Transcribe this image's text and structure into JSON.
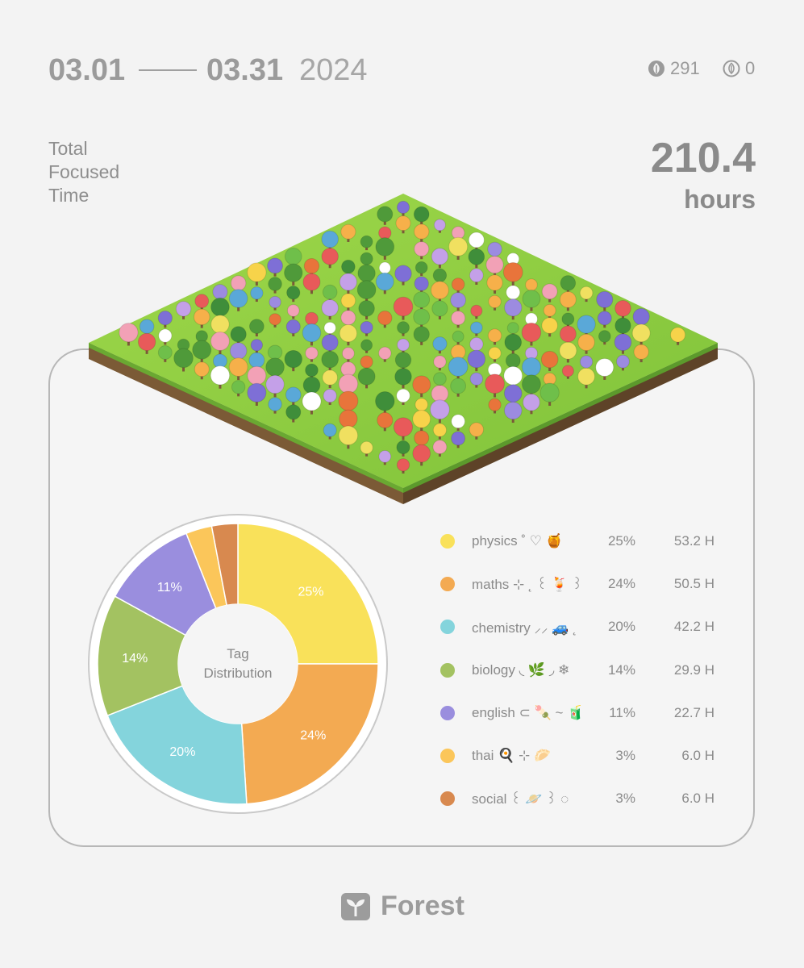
{
  "header": {
    "start_date": "03.01",
    "end_date": "03.31",
    "year": "2024",
    "coins_count": "291",
    "dead_count": "0"
  },
  "summary": {
    "label": "Total Focused Time",
    "value": "210.4",
    "unit": "hours"
  },
  "chart_data": {
    "type": "pie",
    "title": "Tag Distribution",
    "categories": [
      "physics ˚ ♡ 🍯",
      "maths ⊹ ˛ ꒰ 🍹 ꒱",
      "chemistry ⸝⸝ 🚙 ˛",
      "biology ◟ 🌿 ◞ ❄",
      "english ⊂ 🍡 ~ 🧃",
      "thai 🍳 ⊹ 🥟",
      "social ꒰ 🪐 ꒱ ◌"
    ],
    "values": [
      25,
      24,
      20,
      14,
      11,
      3,
      3
    ],
    "percent_labels": [
      "25%",
      "24%",
      "20%",
      "14%",
      "11%",
      "3%",
      "3%"
    ],
    "hours_labels": [
      "53.2 H",
      "50.5 H",
      "42.2 H",
      "29.9 H",
      "22.7 H",
      "6.0 H",
      "6.0 H"
    ],
    "slice_labels": [
      "25%",
      "24%",
      "20%",
      "14%",
      "11%",
      "",
      ""
    ],
    "colors": [
      "#f9e15a",
      "#f3aa52",
      "#84d4dc",
      "#a3c261",
      "#9a8ede",
      "#fbc65a",
      "#d8894f"
    ],
    "legend_position": "right"
  },
  "footer": {
    "brand": "Forest"
  }
}
